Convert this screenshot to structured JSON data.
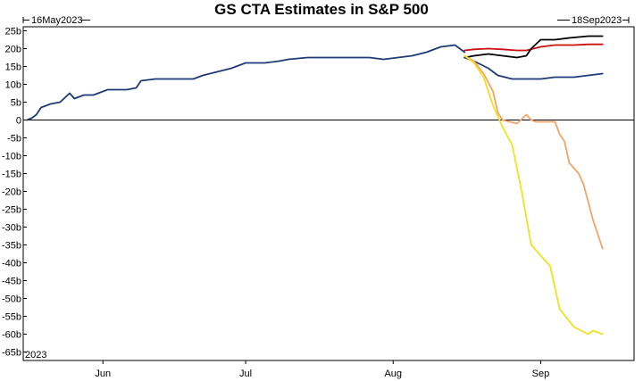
{
  "chart_data": {
    "type": "line",
    "title": "GS CTA Estimates in S&P 500",
    "range_start_label": "16May2023",
    "range_end_label": "18Sep2023",
    "year_label": "2023",
    "ylim": [
      -67,
      25
    ],
    "y_ticks": [
      {
        "value": 25,
        "label": "25b"
      },
      {
        "value": 20,
        "label": "20b"
      },
      {
        "value": 15,
        "label": "15b"
      },
      {
        "value": 10,
        "label": "10b"
      },
      {
        "value": 5,
        "label": "5b"
      },
      {
        "value": 0,
        "label": "0"
      },
      {
        "value": -5,
        "label": "-5b"
      },
      {
        "value": -10,
        "label": "-10b"
      },
      {
        "value": -15,
        "label": "-15b"
      },
      {
        "value": -20,
        "label": "-20b"
      },
      {
        "value": -25,
        "label": "-25b"
      },
      {
        "value": -30,
        "label": "-30b"
      },
      {
        "value": -35,
        "label": "-35b"
      },
      {
        "value": -40,
        "label": "-40b"
      },
      {
        "value": -45,
        "label": "-45b"
      },
      {
        "value": -50,
        "label": "-50b"
      },
      {
        "value": -55,
        "label": "-55b"
      },
      {
        "value": -60,
        "label": "-60b"
      },
      {
        "value": -65,
        "label": "-65b"
      }
    ],
    "xlim": [
      "2023-05-16",
      "2023-09-18"
    ],
    "x_ticks": [
      {
        "date": "2023-06-01",
        "label": "Jun"
      },
      {
        "date": "2023-07-01",
        "label": "Jul"
      },
      {
        "date": "2023-08-01",
        "label": "Aug"
      },
      {
        "date": "2023-09-01",
        "label": "Sep"
      }
    ],
    "grid": false,
    "legend": "none",
    "series": [
      {
        "color": "#1f3a78",
        "points": [
          [
            "2023-05-16",
            0
          ],
          [
            "2023-05-17",
            0.5
          ],
          [
            "2023-05-18",
            1.5
          ],
          [
            "2023-05-19",
            3.5
          ],
          [
            "2023-05-21",
            4.5
          ],
          [
            "2023-05-23",
            5
          ],
          [
            "2023-05-25",
            7.5
          ],
          [
            "2023-05-26",
            6
          ],
          [
            "2023-05-27",
            6.5
          ],
          [
            "2023-05-28",
            7
          ],
          [
            "2023-05-30",
            7
          ],
          [
            "2023-05-31",
            7.5
          ],
          [
            "2023-06-01",
            8
          ],
          [
            "2023-06-02",
            8.5
          ],
          [
            "2023-06-04",
            8.5
          ],
          [
            "2023-06-06",
            8.5
          ],
          [
            "2023-06-08",
            9
          ],
          [
            "2023-06-09",
            11
          ],
          [
            "2023-06-12",
            11.5
          ],
          [
            "2023-06-14",
            11.5
          ],
          [
            "2023-06-16",
            11.5
          ],
          [
            "2023-06-20",
            11.5
          ],
          [
            "2023-06-22",
            12.5
          ],
          [
            "2023-06-25",
            13.5
          ],
          [
            "2023-06-28",
            14.5
          ],
          [
            "2023-07-01",
            16
          ],
          [
            "2023-07-05",
            16
          ],
          [
            "2023-07-08",
            16.5
          ],
          [
            "2023-07-10",
            17
          ],
          [
            "2023-07-14",
            17.5
          ],
          [
            "2023-07-18",
            17.5
          ],
          [
            "2023-07-21",
            17.5
          ],
          [
            "2023-07-24",
            17.5
          ],
          [
            "2023-07-27",
            17.5
          ],
          [
            "2023-07-30",
            17
          ],
          [
            "2023-08-02",
            17.5
          ],
          [
            "2023-08-05",
            18
          ],
          [
            "2023-08-08",
            19
          ],
          [
            "2023-08-11",
            20.5
          ],
          [
            "2023-08-14",
            21
          ],
          [
            "2023-08-16",
            19
          ]
        ]
      },
      {
        "color": "#cc1111",
        "points": [
          [
            "2023-08-16",
            19.5
          ],
          [
            "2023-08-18",
            19.8
          ],
          [
            "2023-08-21",
            20
          ],
          [
            "2023-08-24",
            19.8
          ],
          [
            "2023-08-27",
            19.5
          ],
          [
            "2023-08-29",
            19.5
          ],
          [
            "2023-09-01",
            20.5
          ],
          [
            "2023-09-04",
            21
          ],
          [
            "2023-09-08",
            21
          ],
          [
            "2023-09-11",
            21.2
          ],
          [
            "2023-09-14",
            21.2
          ]
        ]
      },
      {
        "color": "#000000",
        "points": [
          [
            "2023-08-16",
            17.5
          ],
          [
            "2023-08-18",
            18
          ],
          [
            "2023-08-21",
            18.5
          ],
          [
            "2023-08-24",
            18
          ],
          [
            "2023-08-27",
            17.5
          ],
          [
            "2023-08-29",
            18
          ],
          [
            "2023-08-30",
            20
          ],
          [
            "2023-09-01",
            22.5
          ],
          [
            "2023-09-04",
            22.5
          ],
          [
            "2023-09-07",
            23
          ],
          [
            "2023-09-11",
            23.5
          ],
          [
            "2023-09-14",
            23.5
          ]
        ]
      },
      {
        "color": "#1f3a78",
        "points": [
          [
            "2023-08-16",
            17.5
          ],
          [
            "2023-08-18",
            16.5
          ],
          [
            "2023-08-21",
            14.5
          ],
          [
            "2023-08-23",
            12.5
          ],
          [
            "2023-08-26",
            11.5
          ],
          [
            "2023-08-29",
            11.5
          ],
          [
            "2023-09-01",
            11.5
          ],
          [
            "2023-09-04",
            12
          ],
          [
            "2023-09-08",
            12
          ],
          [
            "2023-09-11",
            12.5
          ],
          [
            "2023-09-14",
            13
          ]
        ]
      },
      {
        "color": "#f4a46a",
        "points": [
          [
            "2023-08-16",
            18
          ],
          [
            "2023-08-18",
            16.5
          ],
          [
            "2023-08-20",
            13
          ],
          [
            "2023-08-22",
            8
          ],
          [
            "2023-08-23",
            2
          ],
          [
            "2023-08-24",
            0
          ],
          [
            "2023-08-27",
            -1
          ],
          [
            "2023-08-29",
            1.5
          ],
          [
            "2023-08-30",
            0
          ],
          [
            "2023-08-31",
            -0.5
          ],
          [
            "2023-09-01",
            -0.5
          ],
          [
            "2023-09-04",
            -0.5
          ],
          [
            "2023-09-05",
            -4
          ],
          [
            "2023-09-06",
            -6
          ],
          [
            "2023-09-07",
            -12
          ],
          [
            "2023-09-09",
            -15
          ],
          [
            "2023-09-10",
            -18
          ],
          [
            "2023-09-12",
            -28
          ],
          [
            "2023-09-14",
            -36
          ]
        ]
      },
      {
        "color": "#f0e21e",
        "points": [
          [
            "2023-08-16",
            18
          ],
          [
            "2023-08-18",
            16
          ],
          [
            "2023-08-20",
            12
          ],
          [
            "2023-08-22",
            4
          ],
          [
            "2023-08-24",
            -2
          ],
          [
            "2023-08-26",
            -7
          ],
          [
            "2023-08-28",
            -20
          ],
          [
            "2023-08-30",
            -35
          ],
          [
            "2023-09-01",
            -38
          ],
          [
            "2023-09-03",
            -41
          ],
          [
            "2023-09-05",
            -53
          ],
          [
            "2023-09-08",
            -58
          ],
          [
            "2023-09-11",
            -60
          ],
          [
            "2023-09-12",
            -59
          ],
          [
            "2023-09-14",
            -60
          ]
        ]
      }
    ]
  }
}
